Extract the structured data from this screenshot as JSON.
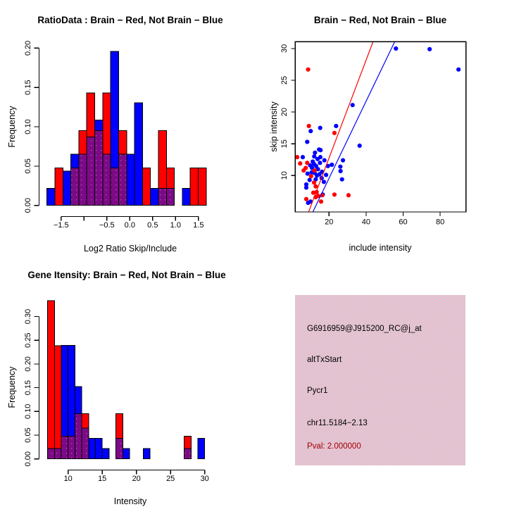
{
  "window": {
    "background": "#ffffff"
  },
  "colors": {
    "brain_red": "#ff0000",
    "not_brain_blue": "#0000ff",
    "overlap_purple": "#7c0a86",
    "card_pink": "#f6bfcb",
    "pval_dark_red": "#a00000",
    "axis_black": "#000000"
  },
  "chart_data": [
    {
      "id": "ratio-histogram",
      "type": "bar",
      "subtype": "overlaid-histogram",
      "title": "RatioData : Brain − Red, Not Brain − Blue",
      "xlabel": "Log2 Ratio Skip/Include",
      "ylabel": "Frequency",
      "legend": [
        {
          "name": "Brain",
          "color": "#ff0000"
        },
        {
          "name": "Not Brain",
          "color": "#0000ff"
        }
      ],
      "x_range": [
        -1.85,
        1.75
      ],
      "y_range": [
        0,
        0.2
      ],
      "grid": false,
      "bin_width": 0.174,
      "x_ticks": [
        {
          "v": -1.5,
          "label": "−1.5"
        },
        {
          "v": -1.0,
          "label": ""
        },
        {
          "v": -0.5,
          "label": "−0.5"
        },
        {
          "v": 0.0,
          "label": "0.0"
        },
        {
          "v": 0.5,
          "label": "0.5"
        },
        {
          "v": 1.0,
          "label": "1.0"
        },
        {
          "v": 1.5,
          "label": "1.5"
        }
      ],
      "y_ticks": [
        {
          "v": 0.0,
          "label": "0.00"
        },
        {
          "v": 0.05,
          "label": "0.05"
        },
        {
          "v": 0.1,
          "label": "0.10"
        },
        {
          "v": 0.15,
          "label": "0.15"
        },
        {
          "v": 0.2,
          "label": "0.20"
        }
      ],
      "bins": [
        {
          "x0": -1.81,
          "red": 0,
          "blue": 0.0217
        },
        {
          "x0": -1.636,
          "red": 0.0476,
          "blue": 0
        },
        {
          "x0": -1.462,
          "red": 0,
          "blue": 0.0435
        },
        {
          "x0": -1.288,
          "red": 0.0476,
          "blue": 0.0652
        },
        {
          "x0": -1.114,
          "red": 0.0952,
          "blue": 0.0652
        },
        {
          "x0": -0.94,
          "red": 0.1429,
          "blue": 0.087
        },
        {
          "x0": -0.766,
          "red": 0.0952,
          "blue": 0.1087
        },
        {
          "x0": -0.592,
          "red": 0.1429,
          "blue": 0.0652
        },
        {
          "x0": -0.418,
          "red": 0.0476,
          "blue": 0.1957
        },
        {
          "x0": -0.244,
          "red": 0.0952,
          "blue": 0.0652
        },
        {
          "x0": -0.07,
          "red": 0,
          "blue": 0.0652
        },
        {
          "x0": 0.104,
          "red": 0,
          "blue": 0.1304
        },
        {
          "x0": 0.278,
          "red": 0.0476,
          "blue": 0
        },
        {
          "x0": 0.452,
          "red": 0,
          "blue": 0.0217
        },
        {
          "x0": 0.626,
          "red": 0.0952,
          "blue": 0.0217
        },
        {
          "x0": 0.8,
          "red": 0.0476,
          "blue": 0.0217
        },
        {
          "x0": 1.148,
          "red": 0,
          "blue": 0.0217
        },
        {
          "x0": 1.322,
          "red": 0.0476,
          "blue": 0
        },
        {
          "x0": 1.496,
          "red": 0.0476,
          "blue": 0
        }
      ]
    },
    {
      "id": "intensity-scatter",
      "type": "scatter",
      "title": "Brain − Red, Not Brain − Blue",
      "xlabel": "include intensity",
      "ylabel": "skip intensity",
      "x_range": [
        2,
        94
      ],
      "y_range": [
        4.3,
        31.1
      ],
      "grid": false,
      "x_ticks": [
        {
          "v": 20,
          "label": "20"
        },
        {
          "v": 40,
          "label": "40"
        },
        {
          "v": 60,
          "label": "60"
        },
        {
          "v": 80,
          "label": "80"
        }
      ],
      "y_ticks": [
        {
          "v": 10,
          "label": "10"
        },
        {
          "v": 15,
          "label": "15"
        },
        {
          "v": 20,
          "label": "20"
        },
        {
          "v": 25,
          "label": "25"
        },
        {
          "v": 30,
          "label": "30"
        }
      ],
      "series": [
        {
          "name": "Not Brain",
          "color": "#0000ff",
          "points": [
            [
              56.1,
              30.0
            ],
            [
              74.3,
              29.9
            ],
            [
              89.9,
              26.7
            ],
            [
              32.7,
              21.1
            ],
            [
              36.5,
              14.7
            ],
            [
              23.8,
              17.8
            ],
            [
              15.2,
              17.5
            ],
            [
              10.1,
              17.0
            ],
            [
              8.2,
              15.3
            ],
            [
              14.6,
              14.1
            ],
            [
              12.4,
              13.6
            ],
            [
              15.4,
              14.0
            ],
            [
              12.0,
              13.0
            ],
            [
              15.3,
              12.9
            ],
            [
              5.8,
              12.9
            ],
            [
              11.9,
              11.8
            ],
            [
              15.1,
              12.0
            ],
            [
              19.4,
              11.5
            ],
            [
              26.1,
              11.4
            ],
            [
              26.2,
              10.7
            ],
            [
              10.6,
              10.5
            ],
            [
              8.4,
              10.3
            ],
            [
              12.8,
              9.4
            ],
            [
              16.0,
              9.6
            ],
            [
              17.2,
              9.0
            ],
            [
              27.0,
              9.4
            ],
            [
              7.7,
              8.6
            ],
            [
              7.7,
              8.1
            ],
            [
              16.6,
              7.0
            ],
            [
              10.0,
              5.9
            ],
            [
              8.7,
              5.7
            ],
            [
              9.5,
              9.3
            ],
            [
              10.8,
              11.2
            ],
            [
              13.0,
              11.5
            ],
            [
              14.0,
              11.0
            ],
            [
              12.2,
              10.4
            ],
            [
              13.5,
              10.0
            ],
            [
              14.8,
              10.2
            ],
            [
              16.2,
              10.6
            ],
            [
              11.2,
              12.2
            ],
            [
              13.8,
              12.6
            ],
            [
              9.8,
              11.6
            ],
            [
              17.5,
              12.4
            ],
            [
              18.4,
              10.1
            ],
            [
              21.5,
              11.7
            ],
            [
              27.5,
              12.4
            ]
          ]
        },
        {
          "name": "Brain",
          "color": "#ff0000",
          "points": [
            [
              8.7,
              26.7
            ],
            [
              9.1,
              17.8
            ],
            [
              22.9,
              16.7
            ],
            [
              2.8,
              12.9
            ],
            [
              4.4,
              11.9
            ],
            [
              8.2,
              12.0
            ],
            [
              7.4,
              11.2
            ],
            [
              6.3,
              10.8
            ],
            [
              12.2,
              10.8
            ],
            [
              10.3,
              9.9
            ],
            [
              11.9,
              8.9
            ],
            [
              12.8,
              8.3
            ],
            [
              11.5,
              7.3
            ],
            [
              13.3,
              7.4
            ],
            [
              14.1,
              6.8
            ],
            [
              15.7,
              5.9
            ],
            [
              16.3,
              6.9
            ],
            [
              12.8,
              6.6
            ],
            [
              22.9,
              7.0
            ],
            [
              30.5,
              6.9
            ],
            [
              7.7,
              6.3
            ]
          ]
        }
      ],
      "fit_lines": [
        {
          "name": "brain-fit",
          "color": "#ff0000",
          "x1": 9.0,
          "y1": 4.3,
          "x2": 43.8,
          "y2": 31.1
        },
        {
          "name": "not-brain-fit",
          "color": "#0000ff",
          "x1": 11.3,
          "y1": 4.3,
          "x2": 55.5,
          "y2": 31.1
        }
      ]
    },
    {
      "id": "gene-intensity-histogram",
      "type": "bar",
      "subtype": "overlaid-histogram",
      "title": "Gene Itensity: Brain − Red, Not Brain − Blue",
      "xlabel": "Intensity",
      "ylabel": "Frequency",
      "legend": [
        {
          "name": "Brain",
          "color": "#ff0000"
        },
        {
          "name": "Not Brain",
          "color": "#0000ff"
        }
      ],
      "x_range": [
        6.5,
        30.5
      ],
      "y_range": [
        0,
        0.333
      ],
      "grid": false,
      "bin_width": 1,
      "x_ticks": [
        {
          "v": 10,
          "label": "10"
        },
        {
          "v": 15,
          "label": "15"
        },
        {
          "v": 20,
          "label": "20"
        },
        {
          "v": 25,
          "label": "25"
        },
        {
          "v": 30,
          "label": "30"
        }
      ],
      "y_ticks": [
        {
          "v": 0.0,
          "label": "0.00"
        },
        {
          "v": 0.05,
          "label": "0.05"
        },
        {
          "v": 0.1,
          "label": "0.10"
        },
        {
          "v": 0.15,
          "label": "0.15"
        },
        {
          "v": 0.2,
          "label": "0.20"
        },
        {
          "v": 0.25,
          "label": "0.25"
        },
        {
          "v": 0.3,
          "label": "0.30"
        }
      ],
      "bins": [
        {
          "x0": 7,
          "red": 0.3333,
          "blue": 0.0217
        },
        {
          "x0": 8,
          "red": 0.2381,
          "blue": 0.0217
        },
        {
          "x0": 9,
          "red": 0.0476,
          "blue": 0.2391
        },
        {
          "x0": 10,
          "red": 0.0476,
          "blue": 0.2391
        },
        {
          "x0": 11,
          "red": 0.0952,
          "blue": 0.1522
        },
        {
          "x0": 12,
          "red": 0.0952,
          "blue": 0.0652
        },
        {
          "x0": 13,
          "red": 0,
          "blue": 0.0435
        },
        {
          "x0": 14,
          "red": 0,
          "blue": 0.0435
        },
        {
          "x0": 15,
          "red": 0,
          "blue": 0.0217
        },
        {
          "x0": 17,
          "red": 0.0952,
          "blue": 0.0435
        },
        {
          "x0": 18,
          "red": 0,
          "blue": 0.0217
        },
        {
          "x0": 21,
          "red": 0,
          "blue": 0.0217
        },
        {
          "x0": 27,
          "red": 0.0476,
          "blue": 0.0217
        },
        {
          "x0": 29,
          "red": 0,
          "blue": 0.0435
        }
      ]
    },
    {
      "id": "gene-info-card",
      "type": "table",
      "background": "#f6bfcb",
      "lines": [
        {
          "text": "G6916959@J915200_RC@j_at",
          "color": "#000000"
        },
        {
          "text": "altTxStart",
          "color": "#000000"
        },
        {
          "text": "Pycr1",
          "color": "#000000"
        },
        {
          "text": "chr11.5184−2.13",
          "color": "#000000"
        },
        {
          "text": "Pval: 2.000000",
          "color": "#a00000"
        }
      ]
    }
  ]
}
